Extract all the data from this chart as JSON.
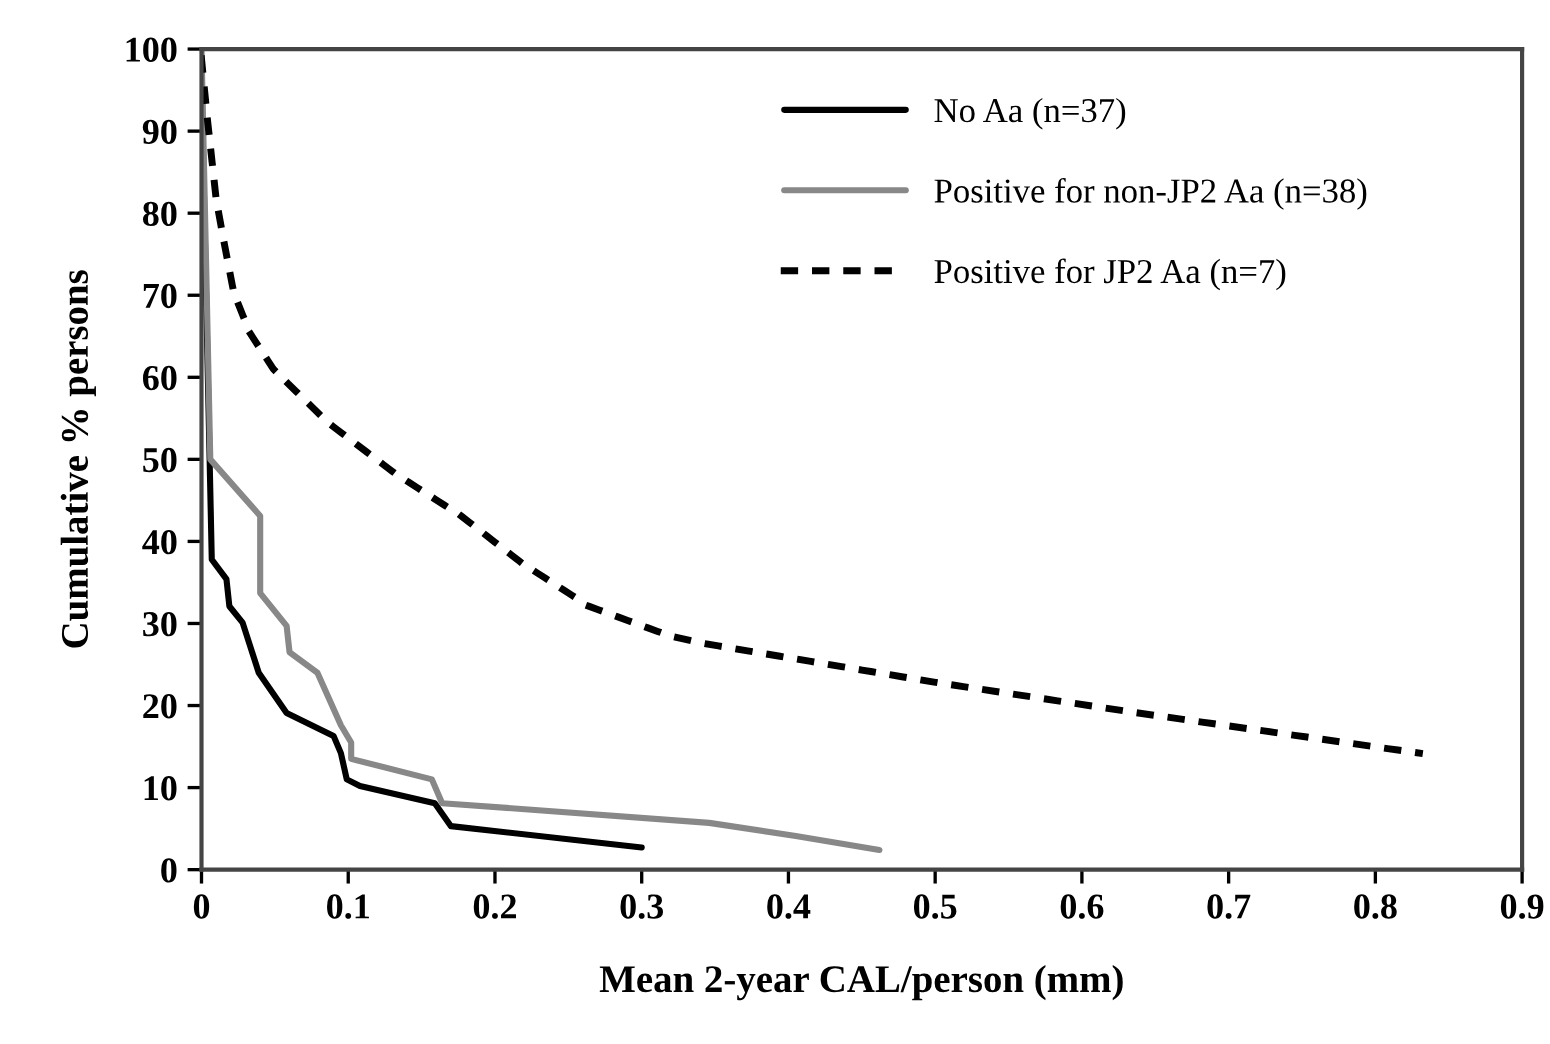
{
  "chart_data": {
    "type": "line",
    "xlabel": "Mean 2-year CAL/person (mm)",
    "ylabel": "Cumulative % persons",
    "xlim": [
      0,
      0.9
    ],
    "xticks": [
      0,
      0.1,
      0.2,
      0.3,
      0.4,
      0.5,
      0.6,
      0.7,
      0.8,
      0.9
    ],
    "ylim": [
      0,
      100
    ],
    "yticks": [
      0,
      10,
      20,
      30,
      40,
      50,
      60,
      70,
      80,
      90,
      100
    ],
    "grid": false,
    "legend": "top right",
    "marker": "none",
    "series": [
      {
        "name": "No Aa (n=37)",
        "color": "#000000",
        "line_style": "solid",
        "x": [
          0,
          0.007,
          0.017,
          0.019,
          0.028,
          0.039,
          0.058,
          0.09,
          0.095,
          0.099,
          0.108,
          0.159,
          0.17,
          0.3
        ],
        "values": [
          96.3,
          37.8,
          35.4,
          32.1,
          30.1,
          24.0,
          19.1,
          16.3,
          14.2,
          11.0,
          10.2,
          8.1,
          5.3,
          2.7
        ]
      },
      {
        "name": "Positive for non-JP2 Aa (n=38)",
        "color": "#888888",
        "line_style": "solid",
        "x": [
          0,
          0.006,
          0.04,
          0.04,
          0.058,
          0.06,
          0.079,
          0.095,
          0.102,
          0.102,
          0.157,
          0.164,
          0.346,
          0.405,
          0.462
        ],
        "values": [
          100,
          50,
          43.1,
          33.7,
          29.7,
          26.5,
          24.0,
          17.6,
          15.5,
          13.5,
          11.0,
          8.1,
          5.7,
          4.1,
          2.4
        ]
      },
      {
        "name": "Positive for JP2 Aa (n=7)",
        "color": "#000000",
        "line_style": "dotted",
        "x": [
          0,
          0.004,
          0.01,
          0.015,
          0.022,
          0.033,
          0.049,
          0.086,
          0.131,
          0.177,
          0.218,
          0.264,
          0.319,
          0.341,
          0.501,
          0.638,
          0.83
        ],
        "values": [
          98.8,
          91.5,
          81.7,
          76.8,
          70.3,
          65.4,
          61.0,
          54.5,
          48.4,
          43.1,
          37.4,
          32.1,
          28.5,
          27.6,
          22.8,
          19.1,
          14.2
        ]
      }
    ]
  }
}
